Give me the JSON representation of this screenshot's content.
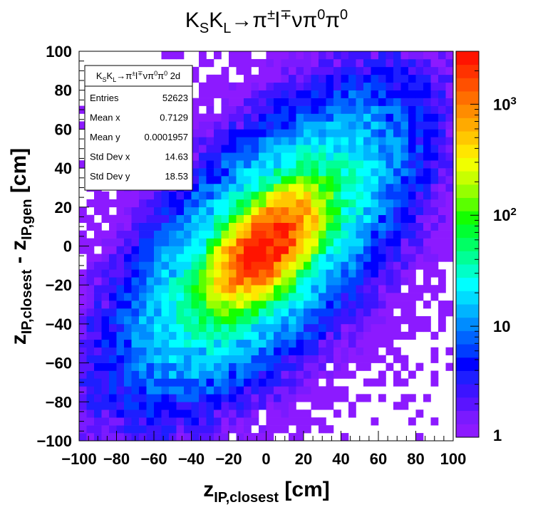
{
  "chart_data": {
    "type": "heatmap",
    "title": "K_{S}K_{L}→π^{±}l^{∓}νπ^{0}π^{0}",
    "xlabel": "z_{IP,closest} [cm]",
    "ylabel": "z_{IP,closest} - z_{IP,gen} [cm]",
    "xlim": [
      -100,
      100
    ],
    "ylim": [
      -100,
      100
    ],
    "bins": 50,
    "z_scale": "log",
    "zlim": [
      1,
      3000
    ],
    "x_ticks": [
      "−100",
      "−80",
      "−60",
      "−40",
      "−20",
      "0",
      "20",
      "40",
      "60",
      "80",
      "100"
    ],
    "y_ticks": [
      "100",
      "80",
      "60",
      "40",
      "20",
      "0",
      "−20",
      "−40",
      "−60",
      "−80",
      "−100"
    ],
    "z_ticks": [
      {
        "value": 1,
        "label": "1"
      },
      {
        "value": 10,
        "label": "10"
      },
      {
        "value": 100,
        "label": "10^{2}"
      },
      {
        "value": 1000,
        "label": "10^{3}"
      }
    ],
    "distribution": {
      "shape": "correlated 2D gaussian core plus sparse tails",
      "peak_x": 0,
      "peak_y": 0,
      "peak_count": 3000,
      "correlation_direction": "positive (lower-left to upper-right)"
    },
    "stats_box": {
      "name": "K_{S}K_{L}→π^{±}l^{∓}νπ^{0}π^{0} 2d",
      "rows": [
        {
          "label": "Entries",
          "value": "52623"
        },
        {
          "label": "Mean x",
          "value": "0.7129"
        },
        {
          "label": "Mean y",
          "value": "0.0001957"
        },
        {
          "label": "Std Dev x",
          "value": "14.63"
        },
        {
          "label": "Std Dev y",
          "value": "18.53"
        }
      ]
    },
    "palette": [
      "#8c1aff",
      "#7a1aff",
      "#5a14ff",
      "#3c14ff",
      "#1e1eff",
      "#0000ff",
      "#003cff",
      "#0064ff",
      "#008cff",
      "#00b4ff",
      "#00dcff",
      "#00ffff",
      "#00ffc8",
      "#00ff96",
      "#00ff64",
      "#00ff32",
      "#14ff00",
      "#5aff00",
      "#96ff00",
      "#c8ff00",
      "#f0ff00",
      "#ffe600",
      "#ffc800",
      "#ffaa00",
      "#ff8c00",
      "#ff6e00",
      "#ff5000",
      "#ff3200",
      "#ff1400"
    ],
    "grid": false,
    "legend": "none"
  }
}
